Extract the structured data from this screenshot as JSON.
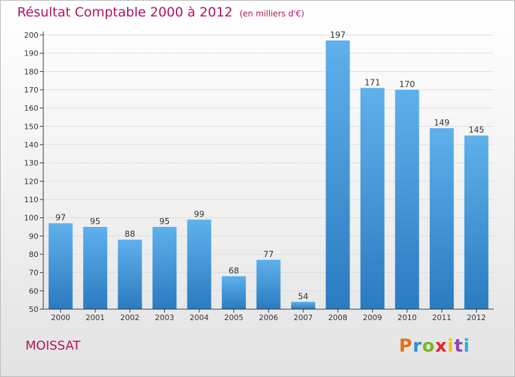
{
  "title": "Résultat Comptable 2000 à 2012",
  "subtitle": "(en milliers d'€)",
  "commune": "MOISSAT",
  "logo": {
    "text": "Proxiti",
    "colors": [
      "#e46f1b",
      "#2d8ed3",
      "#7bb428",
      "#e3262e",
      "#f1c40f",
      "#8e44ad",
      "#2eaadc"
    ]
  },
  "colors": {
    "title": "#b0145c",
    "bar_light": "#5fb1ec",
    "bar_dark": "#2a7bc0",
    "grid": "#dddddd",
    "axis": "#333333"
  },
  "chart_data": {
    "type": "bar",
    "categories": [
      "2000",
      "2001",
      "2002",
      "2003",
      "2004",
      "2005",
      "2006",
      "2007",
      "2008",
      "2009",
      "2010",
      "2011",
      "2012"
    ],
    "values": [
      97,
      95,
      88,
      95,
      99,
      68,
      77,
      54,
      197,
      171,
      170,
      149,
      145
    ],
    "ylim": [
      50,
      200
    ],
    "yticks": [
      50,
      60,
      70,
      80,
      90,
      100,
      110,
      120,
      130,
      140,
      150,
      160,
      170,
      180,
      190,
      200
    ],
    "grid": true,
    "xlabel": "",
    "ylabel": ""
  }
}
